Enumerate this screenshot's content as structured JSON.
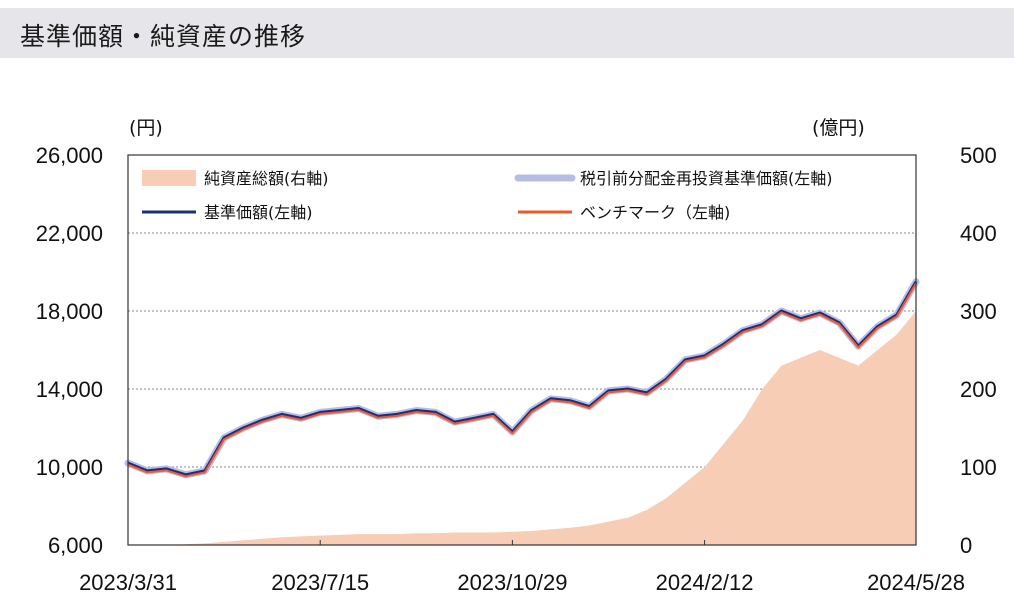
{
  "header": {
    "title": "基準価額・純資産の推移"
  },
  "chart_data": {
    "type": "line",
    "left_unit": "(円)",
    "right_unit": "(億円)",
    "left_ticks": [
      "26,000",
      "22,000",
      "18,000",
      "14,000",
      "10,000",
      "6,000"
    ],
    "right_ticks": [
      "500",
      "400",
      "300",
      "200",
      "100",
      "0"
    ],
    "x_ticks": [
      "2023/3/31",
      "2023/7/15",
      "2023/10/29",
      "2024/2/12",
      "2024/5/28"
    ],
    "ylim_left": [
      6000,
      26000
    ],
    "ylim_right": [
      0,
      500
    ],
    "grid": "horizontal dotted",
    "legend": [
      {
        "label": "純資産総額(右軸)",
        "kind": "area",
        "color": "#f7cdb6"
      },
      {
        "label": "税引前分配金再投資基準価額(左軸)",
        "kind": "line",
        "color": "#b4bde3"
      },
      {
        "label": "基準価額(左軸)",
        "kind": "line",
        "color": "#1f2c7a"
      },
      {
        "label": "ベンチマーク（左軸)",
        "kind": "line",
        "color": "#ef5a2a"
      }
    ],
    "x": [
      "2023/3/31",
      "2023/4/10",
      "2023/4/20",
      "2023/5/1",
      "2023/5/10",
      "2023/5/20",
      "2023/6/1",
      "2023/6/10",
      "2023/6/20",
      "2023/7/1",
      "2023/7/15",
      "2023/7/25",
      "2023/8/5",
      "2023/8/15",
      "2023/8/25",
      "2023/9/5",
      "2023/9/15",
      "2023/9/25",
      "2023/10/5",
      "2023/10/15",
      "2023/10/29",
      "2023/11/8",
      "2023/11/18",
      "2023/11/28",
      "2023/12/8",
      "2023/12/18",
      "2023/12/28",
      "2024/1/8",
      "2024/1/18",
      "2024/1/28",
      "2024/2/12",
      "2024/2/22",
      "2024/3/4",
      "2024/3/14",
      "2024/3/24",
      "2024/4/4",
      "2024/4/14",
      "2024/4/24",
      "2024/5/4",
      "2024/5/14",
      "2024/5/24",
      "2024/5/28"
    ],
    "series": [
      {
        "name": "基準価額(左軸)",
        "values": [
          10200,
          9800,
          9900,
          9600,
          9800,
          11500,
          12000,
          12400,
          12700,
          12500,
          12800,
          12900,
          13000,
          12600,
          12700,
          12900,
          12800,
          12300,
          12500,
          12700,
          11800,
          12900,
          13500,
          13400,
          13100,
          13900,
          14000,
          13800,
          14500,
          15500,
          15700,
          16300,
          17000,
          17300,
          18000,
          17600,
          17900,
          17400,
          16200,
          17200,
          17800,
          19500
        ]
      },
      {
        "name": "純資産総額(右軸)",
        "values": [
          0,
          0,
          0,
          1,
          2,
          4,
          6,
          8,
          10,
          11,
          12,
          13,
          14,
          14,
          14,
          15,
          15,
          16,
          16,
          16,
          17,
          18,
          20,
          22,
          25,
          30,
          35,
          45,
          60,
          80,
          100,
          130,
          160,
          200,
          230,
          240,
          250,
          240,
          230,
          250,
          270,
          300
        ]
      }
    ]
  }
}
